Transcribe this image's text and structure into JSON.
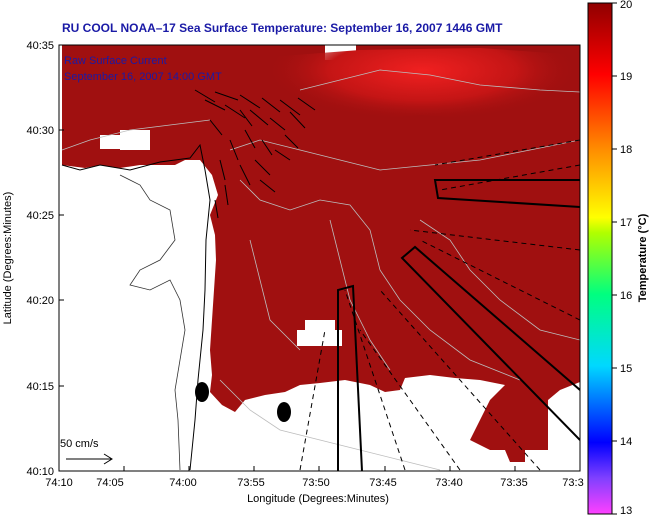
{
  "title": "RU COOL  NOAA–17  Sea Surface Temperature:  September 16, 2007 1446 GMT",
  "legend": {
    "line1": "Raw Surface Current",
    "line2": "September 16, 2007 14:00 GMT"
  },
  "scale": {
    "label": "50 cm/s",
    "speed": 50
  },
  "axes": {
    "xlabel": "Longitude (Degrees:Minutes)",
    "ylabel": "Latitude (Degrees:Minutes)",
    "xticks": [
      "74:10",
      "74:05",
      "74:00",
      "73:55",
      "73:50",
      "73:45",
      "73:40",
      "73:35",
      "73:3"
    ],
    "yticks": [
      "40:35",
      "40:30",
      "40:25",
      "40:20",
      "40:15",
      "40:10"
    ],
    "xlim": [
      "74:10",
      "73:30"
    ],
    "ylim": [
      "40:10",
      "40:35"
    ]
  },
  "colorbar": {
    "label": "Temperature (°C)",
    "ticks": [
      "20",
      "19",
      "18",
      "17",
      "16",
      "15",
      "14",
      "13"
    ],
    "min": 13,
    "max": 20,
    "colors": [
      "#ff00ff",
      "#0000ff",
      "#00c0ff",
      "#00ff80",
      "#ffff00",
      "#ff8000",
      "#ff0000",
      "#800000"
    ]
  },
  "colors": {
    "sst_main": "#a01010",
    "sst_warm": "#e02020",
    "land": "#ffffff",
    "title": "#1a1aa6"
  }
}
